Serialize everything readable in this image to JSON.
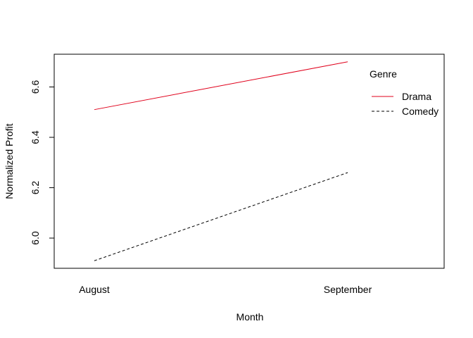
{
  "chart_data": {
    "type": "line",
    "categories": [
      "August",
      "September"
    ],
    "series": [
      {
        "name": "Drama",
        "values": [
          6.51,
          6.7
        ],
        "color": "#e0001b",
        "dash": "solid"
      },
      {
        "name": "Comedy",
        "values": [
          5.91,
          6.26
        ],
        "color": "#000000",
        "dash": "dashed"
      }
    ],
    "xlabel": "Month",
    "ylabel": "Normalized Profit",
    "ylim": [
      5.88,
      6.73
    ],
    "yticks": [
      6.0,
      6.2,
      6.4,
      6.6
    ],
    "ytick_labels": [
      "6.0",
      "6.2",
      "6.4",
      "6.6"
    ],
    "legend": {
      "title": "Genre",
      "position": "top-right"
    },
    "grid": false
  }
}
